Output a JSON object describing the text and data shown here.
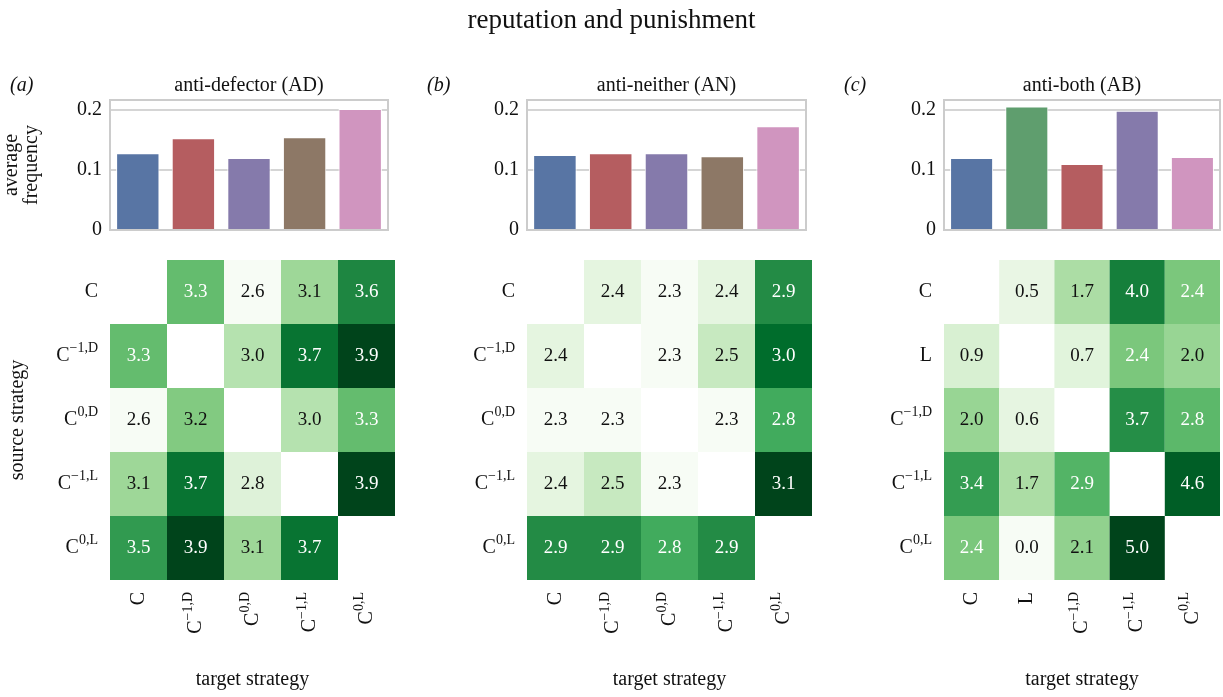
{
  "chart_data": [
    {
      "type": "other",
      "title": "reputation and punishment"
    },
    {
      "type": "bar",
      "title": "anti-defector (AD)",
      "annotations": [
        "(a)"
      ],
      "ylabel": "average frequency",
      "categories": [
        null,
        null,
        null,
        null,
        null
      ],
      "values": [
        0.128,
        0.153,
        0.12,
        0.155,
        0.202
      ],
      "colors": [
        "#5875a4",
        "#b55d60",
        "#857aab",
        "#8d7866",
        "#d095bf"
      ],
      "ylim": [
        0,
        0.217
      ],
      "yticks": [
        0,
        0.1,
        0.2
      ],
      "grid": "y",
      "tick_labels": "y"
    },
    {
      "type": "bar",
      "title": "anti-neither (AN)",
      "annotations": [
        "(b)"
      ],
      "categories": [
        null,
        null,
        null,
        null,
        null
      ],
      "values": [
        0.125,
        0.128,
        0.128,
        0.123,
        0.173
      ],
      "colors": [
        "#5875a4",
        "#b55d60",
        "#857aab",
        "#8d7866",
        "#d095bf"
      ],
      "ylim": [
        0,
        0.217
      ],
      "yticks": [
        0,
        0.1,
        0.2
      ],
      "grid": "y",
      "tick_labels": "y"
    },
    {
      "type": "bar",
      "title": "anti-both (AB)",
      "annotations": [
        "(c)"
      ],
      "categories": [
        null,
        null,
        null,
        null,
        null
      ],
      "values": [
        0.12,
        0.206,
        0.11,
        0.199,
        0.122
      ],
      "colors": [
        "#5875a4",
        "#5f9e6e",
        "#b55d60",
        "#857aab",
        "#d095bf"
      ],
      "ylim": [
        0,
        0.217
      ],
      "yticks": [
        0,
        0.1,
        0.2
      ],
      "grid": "y",
      "tick_labels": "y"
    },
    {
      "type": "heatmap",
      "xlabel": "target strategy",
      "ylabel": "source strategy",
      "data_labels": true,
      "categories": [
        "C",
        "C$^{−1,D}$",
        "C$^{0,D}$",
        "C$^{−1,L}$",
        "C$^{0,L}$"
      ],
      "y_categories": [
        "C",
        "C$^{−1,D}$",
        "C$^{0,D}$",
        "C$^{−1,L}$",
        "C$^{0,L}$"
      ],
      "cells": [
        [
          null,
          3.3,
          2.6,
          3.1,
          3.6
        ],
        [
          3.3,
          null,
          3.0,
          3.7,
          3.9
        ],
        [
          2.6,
          3.2,
          null,
          3.0,
          3.3
        ],
        [
          3.1,
          3.7,
          2.8,
          null,
          3.9
        ],
        [
          3.5,
          3.9,
          3.1,
          3.7,
          null
        ]
      ],
      "cell_labels": [
        [
          null,
          "3.3",
          "2.6",
          "3.1",
          "3.6"
        ],
        [
          "3.3",
          null,
          "3.0",
          "3.7",
          "3.9"
        ],
        [
          "2.6",
          "3.2",
          null,
          "3.0",
          "3.3"
        ],
        [
          "3.1",
          "3.7",
          "2.8",
          null,
          "3.9"
        ],
        [
          "3.5",
          "3.9",
          "3.1",
          "3.7",
          null
        ]
      ]
    },
    {
      "type": "heatmap",
      "xlabel": "target strategy",
      "data_labels": true,
      "categories": [
        "C",
        "C$^{−1,D}$",
        "C$^{0,D}$",
        "C$^{−1,L}$",
        "C$^{0,L}$"
      ],
      "y_categories": [
        "C",
        "C$^{−1,D}$",
        "C$^{0,D}$",
        "C$^{−1,L}$",
        "C$^{0,L}$"
      ],
      "cells": [
        [
          null,
          2.4,
          2.3,
          2.4,
          2.9
        ],
        [
          2.4,
          null,
          2.3,
          2.5,
          3.0
        ],
        [
          2.3,
          2.3,
          null,
          2.3,
          2.8
        ],
        [
          2.4,
          2.5,
          2.3,
          null,
          3.1
        ],
        [
          2.9,
          2.9,
          2.8,
          2.9,
          null
        ]
      ],
      "cell_labels": [
        [
          null,
          "2.4",
          "2.3",
          "2.4",
          "2.9"
        ],
        [
          "2.4",
          null,
          "2.3",
          "2.5",
          "3.0"
        ],
        [
          "2.3",
          "2.3",
          null,
          "2.3",
          "2.8"
        ],
        [
          "2.4",
          "2.5",
          "2.3",
          null,
          "3.1"
        ],
        [
          "2.9",
          "2.9",
          "2.8",
          "2.9",
          null
        ]
      ]
    },
    {
      "type": "heatmap",
      "xlabel": "target strategy",
      "data_labels": true,
      "categories": [
        "C",
        "L",
        "C$^{−1,D}$",
        "C$^{−1,L}$",
        "C$^{0,L}$"
      ],
      "y_categories": [
        "C",
        "L",
        "C$^{−1,D}$",
        "C$^{−1,L}$",
        "C$^{0,L}$"
      ],
      "cells": [
        [
          null,
          0.5,
          1.7,
          4.0,
          2.4
        ],
        [
          0.9,
          null,
          0.7,
          2.4,
          2.0
        ],
        [
          2.0,
          0.6,
          null,
          3.7,
          2.8
        ],
        [
          3.4,
          1.7,
          2.9,
          null,
          4.6
        ],
        [
          2.4,
          0.0,
          2.1,
          5.0,
          null
        ]
      ],
      "cell_labels": [
        [
          null,
          "0.5",
          "1.7",
          "4.0",
          "2.4"
        ],
        [
          "0.9",
          null,
          "0.7",
          "2.4",
          "2.0"
        ],
        [
          "2.0",
          "0.6",
          null,
          "3.7",
          "2.8"
        ],
        [
          "3.4",
          "1.7",
          "2.9",
          null,
          "4.6"
        ],
        [
          "2.4",
          "0.0",
          "2.1",
          "5.0",
          null
        ]
      ]
    }
  ]
}
